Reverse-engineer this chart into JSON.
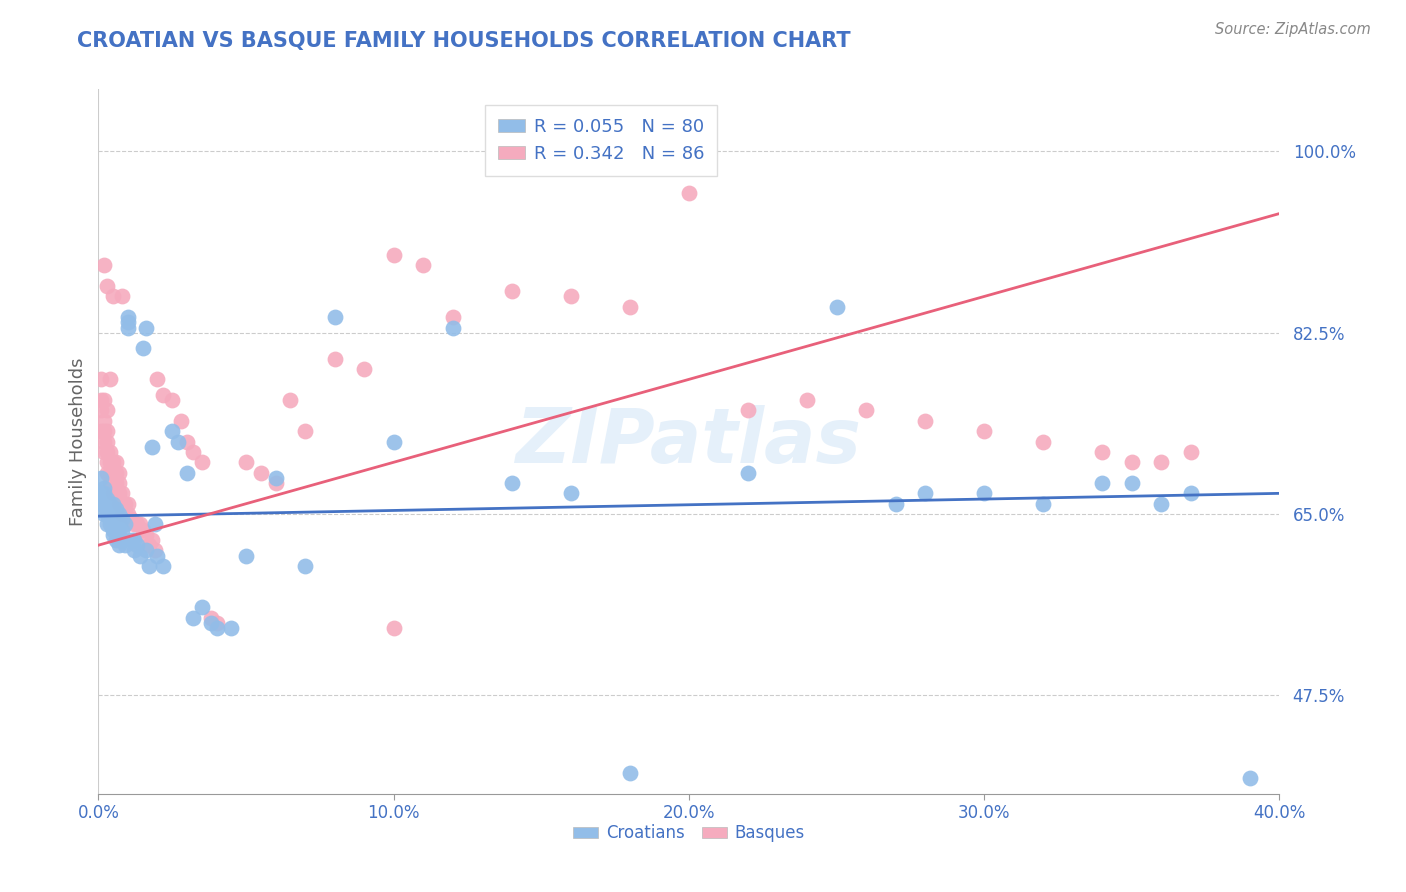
{
  "title": "CROATIAN VS BASQUE FAMILY HOUSEHOLDS CORRELATION CHART",
  "source": "Source: ZipAtlas.com",
  "ylabel": "Family Households",
  "xlim": [
    0.0,
    0.4
  ],
  "ylim": [
    0.38,
    1.06
  ],
  "xtick_vals": [
    0.0,
    0.1,
    0.2,
    0.3,
    0.4
  ],
  "xtick_labels": [
    "0.0%",
    "10.0%",
    "20.0%",
    "30.0%",
    "40.0%"
  ],
  "ytick_vals": [
    0.475,
    0.65,
    0.825,
    1.0
  ],
  "ytick_labels": [
    "47.5%",
    "65.0%",
    "82.5%",
    "100.0%"
  ],
  "croatian_R": 0.055,
  "croatian_N": 80,
  "basque_R": 0.342,
  "basque_N": 86,
  "croatian_color": "#92BDE8",
  "basque_color": "#F5ABBE",
  "croatian_line_color": "#4472C4",
  "basque_line_color": "#E8607A",
  "legend_croatian_label": "Croatians",
  "legend_basque_label": "Basques",
  "watermark": "ZIPatlas",
  "background_color": "#FFFFFF",
  "grid_color": "#CCCCCC",
  "title_color": "#4472C4",
  "cro_line_x0": 0.0,
  "cro_line_x1": 0.4,
  "cro_line_y0": 0.648,
  "cro_line_y1": 0.67,
  "bas_line_x0": 0.0,
  "bas_line_x1": 0.4,
  "bas_line_y0": 0.62,
  "bas_line_y1": 0.94,
  "croatians_x": [
    0.001,
    0.001,
    0.001,
    0.002,
    0.002,
    0.002,
    0.002,
    0.003,
    0.003,
    0.003,
    0.003,
    0.003,
    0.003,
    0.004,
    0.004,
    0.004,
    0.004,
    0.005,
    0.005,
    0.005,
    0.005,
    0.005,
    0.005,
    0.006,
    0.006,
    0.006,
    0.006,
    0.007,
    0.007,
    0.007,
    0.007,
    0.008,
    0.008,
    0.008,
    0.009,
    0.009,
    0.01,
    0.01,
    0.01,
    0.011,
    0.012,
    0.012,
    0.013,
    0.014,
    0.015,
    0.016,
    0.016,
    0.017,
    0.018,
    0.019,
    0.02,
    0.022,
    0.025,
    0.027,
    0.03,
    0.032,
    0.035,
    0.038,
    0.04,
    0.045,
    0.05,
    0.06,
    0.07,
    0.08,
    0.1,
    0.12,
    0.14,
    0.16,
    0.18,
    0.22,
    0.25,
    0.27,
    0.28,
    0.3,
    0.32,
    0.34,
    0.35,
    0.36,
    0.37,
    0.39
  ],
  "croatians_y": [
    0.67,
    0.66,
    0.685,
    0.675,
    0.65,
    0.66,
    0.67,
    0.655,
    0.66,
    0.665,
    0.64,
    0.65,
    0.66,
    0.645,
    0.655,
    0.64,
    0.66,
    0.635,
    0.65,
    0.645,
    0.63,
    0.66,
    0.64,
    0.625,
    0.645,
    0.655,
    0.635,
    0.64,
    0.63,
    0.65,
    0.62,
    0.635,
    0.625,
    0.645,
    0.64,
    0.62,
    0.83,
    0.84,
    0.835,
    0.625,
    0.615,
    0.625,
    0.62,
    0.61,
    0.81,
    0.615,
    0.83,
    0.6,
    0.715,
    0.64,
    0.61,
    0.6,
    0.73,
    0.72,
    0.69,
    0.55,
    0.56,
    0.545,
    0.54,
    0.54,
    0.61,
    0.685,
    0.6,
    0.84,
    0.72,
    0.83,
    0.68,
    0.67,
    0.4,
    0.69,
    0.85,
    0.66,
    0.67,
    0.67,
    0.66,
    0.68,
    0.68,
    0.66,
    0.67,
    0.395
  ],
  "basques_x": [
    0.001,
    0.001,
    0.001,
    0.001,
    0.002,
    0.002,
    0.002,
    0.002,
    0.002,
    0.003,
    0.003,
    0.003,
    0.003,
    0.003,
    0.003,
    0.004,
    0.004,
    0.004,
    0.004,
    0.005,
    0.005,
    0.005,
    0.005,
    0.006,
    0.006,
    0.006,
    0.006,
    0.007,
    0.007,
    0.007,
    0.007,
    0.008,
    0.008,
    0.008,
    0.009,
    0.009,
    0.01,
    0.01,
    0.011,
    0.012,
    0.013,
    0.014,
    0.015,
    0.016,
    0.017,
    0.018,
    0.019,
    0.02,
    0.022,
    0.025,
    0.028,
    0.03,
    0.032,
    0.035,
    0.038,
    0.04,
    0.05,
    0.055,
    0.06,
    0.065,
    0.07,
    0.08,
    0.09,
    0.1,
    0.11,
    0.12,
    0.14,
    0.16,
    0.18,
    0.2,
    0.22,
    0.24,
    0.26,
    0.28,
    0.3,
    0.32,
    0.34,
    0.35,
    0.36,
    0.37,
    0.002,
    0.003,
    0.004,
    0.005,
    0.008,
    0.1
  ],
  "basques_y": [
    0.73,
    0.75,
    0.76,
    0.78,
    0.72,
    0.74,
    0.73,
    0.76,
    0.71,
    0.72,
    0.7,
    0.73,
    0.69,
    0.71,
    0.75,
    0.69,
    0.71,
    0.7,
    0.68,
    0.68,
    0.7,
    0.69,
    0.67,
    0.68,
    0.7,
    0.67,
    0.69,
    0.66,
    0.68,
    0.67,
    0.69,
    0.65,
    0.67,
    0.66,
    0.65,
    0.66,
    0.65,
    0.66,
    0.645,
    0.64,
    0.64,
    0.64,
    0.635,
    0.63,
    0.62,
    0.625,
    0.615,
    0.78,
    0.765,
    0.76,
    0.74,
    0.72,
    0.71,
    0.7,
    0.55,
    0.545,
    0.7,
    0.69,
    0.68,
    0.76,
    0.73,
    0.8,
    0.79,
    0.9,
    0.89,
    0.84,
    0.865,
    0.86,
    0.85,
    0.96,
    0.75,
    0.76,
    0.75,
    0.74,
    0.73,
    0.72,
    0.71,
    0.7,
    0.7,
    0.71,
    0.89,
    0.87,
    0.78,
    0.86,
    0.86,
    0.54
  ]
}
